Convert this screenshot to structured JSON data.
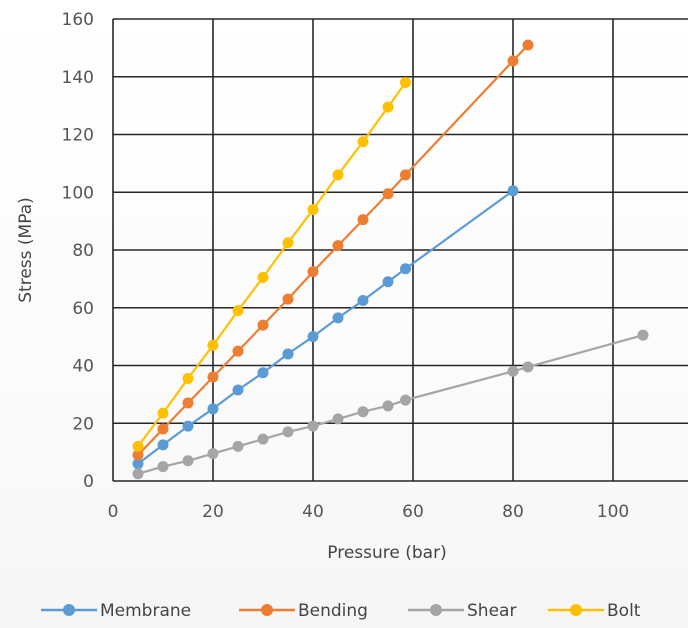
{
  "chart_data": {
    "type": "scatter",
    "xlabel": "Pressure (bar)",
    "ylabel": "Stress (MPa)",
    "xlim": [
      0,
      115
    ],
    "ylim": [
      0,
      160
    ],
    "x_ticks": [
      0,
      20,
      40,
      60,
      80,
      100
    ],
    "y_ticks": [
      0,
      20,
      40,
      60,
      80,
      100,
      120,
      140,
      160
    ],
    "grid": true,
    "legend_position": "bottom",
    "series": [
      {
        "name": "Membrane",
        "color": "#5b9bd5",
        "x": [
          5,
          10,
          15,
          20,
          25,
          30,
          35,
          40,
          45,
          50,
          55,
          58.5,
          80
        ],
        "y": [
          6,
          12.5,
          19,
          25,
          31.5,
          37.5,
          44,
          50,
          56.5,
          62.5,
          69,
          73.5,
          100.5
        ]
      },
      {
        "name": "Bending",
        "color": "#ed7d31",
        "x": [
          5,
          10,
          15,
          20,
          25,
          30,
          35,
          40,
          45,
          50,
          55,
          58.5,
          80,
          83
        ],
        "y": [
          9,
          18,
          27,
          36,
          45,
          54,
          63,
          72.5,
          81.5,
          90.5,
          99.5,
          106,
          145.5,
          151
        ]
      },
      {
        "name": "Shear",
        "color": "#a5a5a5",
        "x": [
          5,
          10,
          15,
          20,
          25,
          30,
          35,
          40,
          45,
          50,
          55,
          58.5,
          80,
          83,
          106
        ],
        "y": [
          2.5,
          5,
          7,
          9.5,
          12,
          14.5,
          17,
          19,
          21.5,
          24,
          26,
          28,
          38,
          39.5,
          50.5
        ]
      },
      {
        "name": "Bolt",
        "color": "#ffc000",
        "x": [
          5,
          10,
          15,
          20,
          25,
          30,
          35,
          40,
          45,
          50,
          55,
          58.5
        ],
        "y": [
          12,
          23.5,
          35.5,
          47,
          59,
          70.5,
          82.5,
          94,
          106,
          117.5,
          129.5,
          138
        ]
      }
    ]
  }
}
